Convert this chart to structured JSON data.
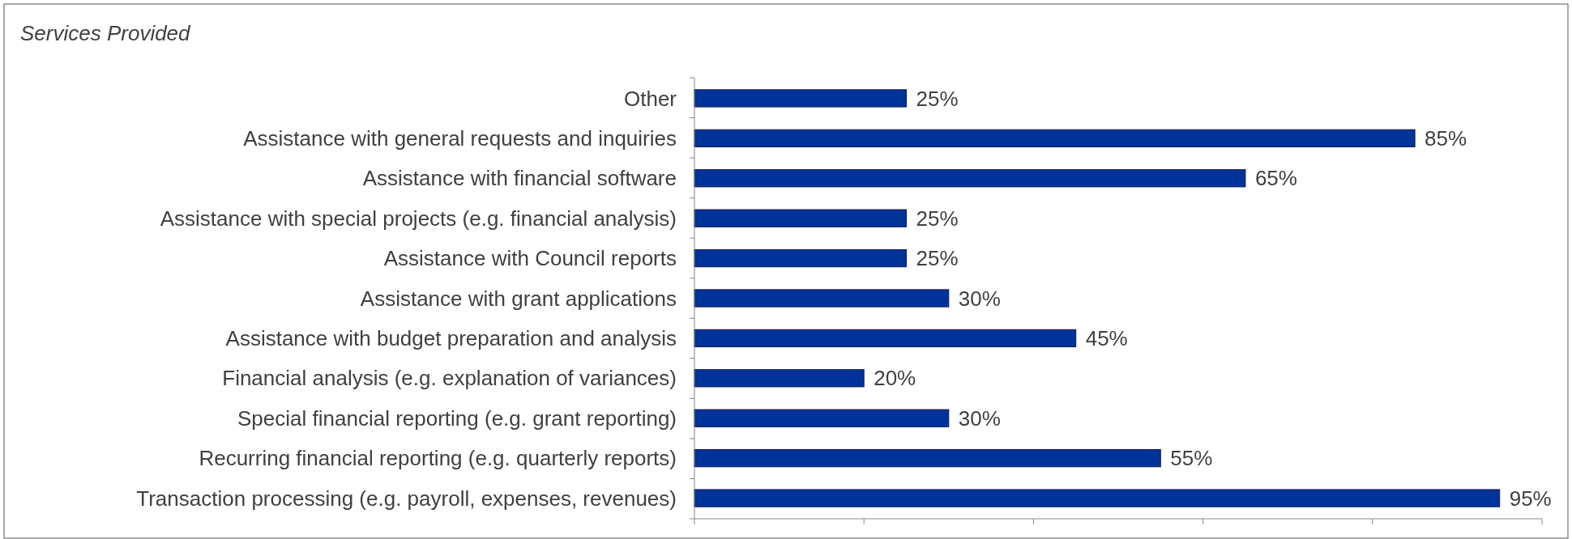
{
  "chart_data": {
    "type": "bar",
    "orientation": "horizontal",
    "title": "Services Provided",
    "categories": [
      "Other",
      "Assistance with general requests and inquiries",
      "Assistance with financial software",
      "Assistance with special projects (e.g. financial analysis)",
      "Assistance with Council reports",
      "Assistance with grant applications",
      "Assistance with budget preparation and analysis",
      "Financial analysis (e.g. explanation of variances)",
      "Special financial reporting (e.g. grant reporting)",
      "Recurring financial reporting (e.g. quarterly reports)",
      "Transaction processing (e.g. payroll, expenses, revenues)"
    ],
    "values": [
      25,
      85,
      65,
      25,
      25,
      30,
      45,
      20,
      30,
      55,
      95
    ],
    "value_labels": [
      "25%",
      "85%",
      "65%",
      "25%",
      "25%",
      "30%",
      "45%",
      "20%",
      "30%",
      "55%",
      "95%"
    ],
    "color": "#003399",
    "xlim": [
      0,
      100
    ],
    "xticks": [
      {
        "value": 0,
        "label": null
      },
      {
        "value": 20,
        "label": null
      },
      {
        "value": 40,
        "label": null
      },
      {
        "value": 60,
        "label": null
      },
      {
        "value": 80,
        "label": null
      },
      {
        "value": 100,
        "label": null
      }
    ],
    "grid": false
  }
}
